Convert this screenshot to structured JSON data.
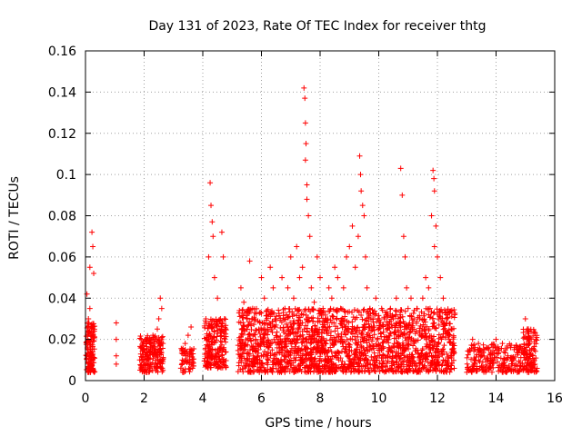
{
  "chart_data": {
    "type": "scatter",
    "title": "Day 131 of 2023, Rate Of TEC Index for receiver thtg",
    "xlabel": "GPS time / hours",
    "ylabel": "ROTI / TECUs",
    "xlim": [
      0,
      16
    ],
    "ylim": [
      0,
      0.16
    ],
    "x_ticks": [
      0,
      2,
      4,
      6,
      8,
      10,
      12,
      14,
      16
    ],
    "x_tick_labels": [
      "0",
      "2",
      "4",
      "6",
      "8",
      "10",
      "12",
      "14",
      "16"
    ],
    "y_ticks": [
      0,
      0.02,
      0.04,
      0.06,
      0.08,
      0.1,
      0.12,
      0.14,
      0.16
    ],
    "y_tick_labels": [
      "0",
      "0.02",
      "0.04",
      "0.06",
      "0.08",
      "0.1",
      "0.12",
      "0.14",
      "0.16"
    ],
    "grid": true,
    "marker": "plus",
    "color": "#ff0000",
    "series": [
      {
        "name": "ROTI",
        "points": [
          [
            0.05,
            0.042
          ],
          [
            0.1,
            0.03
          ],
          [
            0.15,
            0.055
          ],
          [
            0.22,
            0.072
          ],
          [
            0.25,
            0.065
          ],
          [
            0.28,
            0.052
          ],
          [
            0.12,
            0.028
          ],
          [
            0.2,
            0.02
          ],
          [
            0.08,
            0.015
          ],
          [
            0.18,
            0.01
          ],
          [
            0.25,
            0.006
          ],
          [
            0.3,
            0.024
          ],
          [
            0.05,
            0.012
          ],
          [
            0.15,
            0.035
          ],
          [
            1.05,
            0.028
          ],
          [
            1.05,
            0.02
          ],
          [
            1.05,
            0.012
          ],
          [
            1.05,
            0.008
          ],
          [
            1.9,
            0.02
          ],
          [
            2.0,
            0.015
          ],
          [
            2.1,
            0.012
          ],
          [
            2.2,
            0.02
          ],
          [
            2.3,
            0.022
          ],
          [
            2.4,
            0.008
          ],
          [
            2.5,
            0.03
          ],
          [
            2.55,
            0.04
          ],
          [
            2.6,
            0.035
          ],
          [
            2.45,
            0.025
          ],
          [
            2.05,
            0.005
          ],
          [
            2.35,
            0.016
          ],
          [
            3.3,
            0.01
          ],
          [
            3.4,
            0.018
          ],
          [
            3.5,
            0.022
          ],
          [
            3.6,
            0.026
          ],
          [
            3.35,
            0.004
          ],
          [
            3.55,
            0.014
          ],
          [
            4.1,
            0.015
          ],
          [
            4.2,
            0.02
          ],
          [
            4.25,
            0.096
          ],
          [
            4.28,
            0.085
          ],
          [
            4.32,
            0.077
          ],
          [
            4.35,
            0.07
          ],
          [
            4.2,
            0.06
          ],
          [
            4.4,
            0.05
          ],
          [
            4.5,
            0.04
          ],
          [
            4.65,
            0.072
          ],
          [
            4.7,
            0.06
          ],
          [
            4.6,
            0.03
          ],
          [
            4.15,
            0.008
          ],
          [
            4.45,
            0.012
          ],
          [
            5.3,
            0.045
          ],
          [
            5.4,
            0.038
          ],
          [
            5.5,
            0.03
          ],
          [
            5.6,
            0.058
          ],
          [
            5.7,
            0.035
          ],
          [
            5.8,
            0.02
          ],
          [
            5.9,
            0.015
          ],
          [
            6.0,
            0.05
          ],
          [
            6.1,
            0.04
          ],
          [
            6.2,
            0.025
          ],
          [
            6.3,
            0.055
          ],
          [
            6.4,
            0.045
          ],
          [
            6.5,
            0.03
          ],
          [
            6.6,
            0.02
          ],
          [
            6.7,
            0.05
          ],
          [
            6.8,
            0.035
          ],
          [
            6.9,
            0.045
          ],
          [
            7.0,
            0.06
          ],
          [
            7.1,
            0.04
          ],
          [
            7.2,
            0.065
          ],
          [
            7.3,
            0.05
          ],
          [
            7.45,
            0.142
          ],
          [
            7.48,
            0.137
          ],
          [
            7.5,
            0.125
          ],
          [
            7.52,
            0.115
          ],
          [
            7.5,
            0.107
          ],
          [
            7.55,
            0.095
          ],
          [
            7.55,
            0.088
          ],
          [
            7.6,
            0.08
          ],
          [
            7.65,
            0.07
          ],
          [
            7.4,
            0.055
          ],
          [
            7.7,
            0.045
          ],
          [
            7.8,
            0.038
          ],
          [
            7.9,
            0.06
          ],
          [
            8.0,
            0.05
          ],
          [
            8.1,
            0.035
          ],
          [
            8.2,
            0.03
          ],
          [
            8.3,
            0.045
          ],
          [
            8.4,
            0.04
          ],
          [
            8.5,
            0.055
          ],
          [
            8.6,
            0.05
          ],
          [
            8.7,
            0.035
          ],
          [
            8.8,
            0.045
          ],
          [
            8.9,
            0.06
          ],
          [
            9.0,
            0.065
          ],
          [
            9.1,
            0.075
          ],
          [
            9.2,
            0.055
          ],
          [
            9.35,
            0.109
          ],
          [
            9.38,
            0.1
          ],
          [
            9.4,
            0.092
          ],
          [
            9.45,
            0.085
          ],
          [
            9.5,
            0.08
          ],
          [
            9.3,
            0.07
          ],
          [
            9.55,
            0.06
          ],
          [
            9.6,
            0.045
          ],
          [
            9.7,
            0.035
          ],
          [
            9.8,
            0.03
          ],
          [
            9.9,
            0.04
          ],
          [
            10.0,
            0.025
          ],
          [
            10.1,
            0.035
          ],
          [
            10.2,
            0.03
          ],
          [
            10.3,
            0.02
          ],
          [
            10.4,
            0.035
          ],
          [
            10.5,
            0.03
          ],
          [
            10.6,
            0.04
          ],
          [
            10.75,
            0.103
          ],
          [
            10.8,
            0.09
          ],
          [
            10.85,
            0.07
          ],
          [
            10.9,
            0.06
          ],
          [
            10.95,
            0.045
          ],
          [
            11.0,
            0.035
          ],
          [
            11.1,
            0.04
          ],
          [
            11.2,
            0.03
          ],
          [
            11.3,
            0.035
          ],
          [
            11.4,
            0.03
          ],
          [
            11.5,
            0.04
          ],
          [
            11.6,
            0.05
          ],
          [
            11.7,
            0.045
          ],
          [
            11.85,
            0.102
          ],
          [
            11.88,
            0.098
          ],
          [
            11.9,
            0.092
          ],
          [
            11.8,
            0.08
          ],
          [
            11.95,
            0.075
          ],
          [
            11.9,
            0.065
          ],
          [
            12.0,
            0.06
          ],
          [
            12.1,
            0.05
          ],
          [
            12.2,
            0.04
          ],
          [
            12.3,
            0.03
          ],
          [
            12.4,
            0.02
          ],
          [
            12.5,
            0.015
          ],
          [
            5.4,
            0.015
          ],
          [
            5.8,
            0.01
          ],
          [
            6.2,
            0.012
          ],
          [
            6.6,
            0.018
          ],
          [
            7.0,
            0.014
          ],
          [
            7.4,
            0.012
          ],
          [
            7.8,
            0.016
          ],
          [
            8.2,
            0.01
          ],
          [
            8.6,
            0.014
          ],
          [
            9.0,
            0.012
          ],
          [
            9.4,
            0.016
          ],
          [
            9.8,
            0.01
          ],
          [
            10.2,
            0.012
          ],
          [
            10.6,
            0.014
          ],
          [
            11.0,
            0.01
          ],
          [
            11.4,
            0.006
          ],
          [
            11.8,
            0.012
          ],
          [
            12.2,
            0.01
          ],
          [
            13.1,
            0.015
          ],
          [
            13.2,
            0.02
          ],
          [
            13.3,
            0.01
          ],
          [
            13.4,
            0.018
          ],
          [
            13.5,
            0.012
          ],
          [
            13.7,
            0.016
          ],
          [
            13.9,
            0.01
          ],
          [
            14.0,
            0.02
          ],
          [
            14.1,
            0.015
          ],
          [
            14.2,
            0.008
          ],
          [
            14.4,
            0.012
          ],
          [
            14.6,
            0.01
          ],
          [
            14.8,
            0.015
          ],
          [
            15.0,
            0.03
          ],
          [
            15.1,
            0.025
          ],
          [
            15.2,
            0.02
          ],
          [
            15.3,
            0.015
          ],
          [
            15.05,
            0.01
          ],
          [
            15.25,
            0.005
          ],
          [
            15.15,
            0.018
          ]
        ]
      }
    ],
    "dense_bands": [
      {
        "x": [
          0.02,
          0.32
        ],
        "y": [
          0.004,
          0.028
        ],
        "density": 120
      },
      {
        "x": [
          1.85,
          2.65
        ],
        "y": [
          0.004,
          0.022
        ],
        "density": 180
      },
      {
        "x": [
          3.25,
          3.7
        ],
        "y": [
          0.004,
          0.016
        ],
        "density": 60
      },
      {
        "x": [
          4.05,
          4.8
        ],
        "y": [
          0.006,
          0.03
        ],
        "density": 200
      },
      {
        "x": [
          5.2,
          12.6
        ],
        "y": [
          0.004,
          0.035
        ],
        "density": 1800
      },
      {
        "x": [
          13.0,
          14.9
        ],
        "y": [
          0.004,
          0.018
        ],
        "density": 220
      },
      {
        "x": [
          14.9,
          15.4
        ],
        "y": [
          0.004,
          0.025
        ],
        "density": 120
      }
    ]
  }
}
